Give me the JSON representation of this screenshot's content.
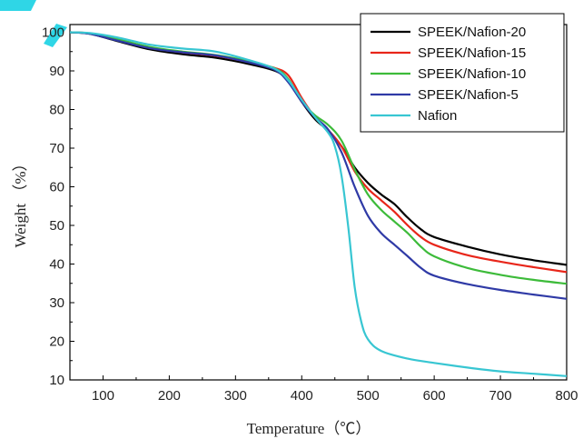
{
  "chart_data": {
    "type": "line",
    "title": "",
    "xlabel": "Temperature（℃）",
    "ylabel": "Weight （%）",
    "xlim": [
      50,
      800
    ],
    "ylim": [
      10,
      102
    ],
    "xticks": [
      100,
      200,
      300,
      400,
      500,
      600,
      700,
      800
    ],
    "xtick_labels": [
      "100",
      "200",
      "300",
      "400",
      "500",
      "600",
      "700",
      "800"
    ],
    "yticks": [
      10,
      20,
      30,
      40,
      50,
      60,
      70,
      80,
      90,
      100
    ],
    "ytick_labels": [
      "10",
      "20",
      "30",
      "40",
      "50",
      "60",
      "70",
      "80",
      "90",
      "100"
    ],
    "grid": false,
    "legend_position": "top-right",
    "series": [
      {
        "name": "SPEEK/Nafion-20",
        "color": "#000000",
        "points": [
          [
            50,
            100
          ],
          [
            80,
            99.6
          ],
          [
            120,
            97.8
          ],
          [
            170,
            95.6
          ],
          [
            220,
            94.3
          ],
          [
            270,
            93.4
          ],
          [
            320,
            91.8
          ],
          [
            360,
            90
          ],
          [
            380,
            87.5
          ],
          [
            400,
            82
          ],
          [
            420,
            77.5
          ],
          [
            440,
            74.5
          ],
          [
            460,
            70.5
          ],
          [
            480,
            65
          ],
          [
            500,
            61
          ],
          [
            520,
            58
          ],
          [
            540,
            55.5
          ],
          [
            560,
            52
          ],
          [
            580,
            49
          ],
          [
            600,
            47
          ],
          [
            650,
            44.5
          ],
          [
            700,
            42.5
          ],
          [
            750,
            41
          ],
          [
            800,
            39.8
          ]
        ]
      },
      {
        "name": "SPEEK/Nafion-15",
        "color": "#e8261a",
        "points": [
          [
            50,
            100
          ],
          [
            80,
            99.7
          ],
          [
            120,
            98.2
          ],
          [
            170,
            96
          ],
          [
            220,
            94.8
          ],
          [
            270,
            93.9
          ],
          [
            320,
            92.3
          ],
          [
            360,
            90.7
          ],
          [
            380,
            88.8
          ],
          [
            400,
            83
          ],
          [
            420,
            78
          ],
          [
            440,
            74.7
          ],
          [
            460,
            70.5
          ],
          [
            480,
            64
          ],
          [
            500,
            59.5
          ],
          [
            520,
            56.5
          ],
          [
            540,
            53.5
          ],
          [
            560,
            50
          ],
          [
            580,
            47
          ],
          [
            600,
            45
          ],
          [
            650,
            42.3
          ],
          [
            700,
            40.6
          ],
          [
            750,
            39.2
          ],
          [
            800,
            37.9
          ]
        ]
      },
      {
        "name": "SPEEK/Nafion-10",
        "color": "#3dbb3a",
        "points": [
          [
            50,
            100
          ],
          [
            80,
            99.7
          ],
          [
            120,
            98.3
          ],
          [
            170,
            96.2
          ],
          [
            220,
            95
          ],
          [
            270,
            94.1
          ],
          [
            320,
            92.5
          ],
          [
            360,
            90.6
          ],
          [
            380,
            87.8
          ],
          [
            400,
            82
          ],
          [
            420,
            78.5
          ],
          [
            440,
            76
          ],
          [
            460,
            72
          ],
          [
            480,
            64.5
          ],
          [
            500,
            58
          ],
          [
            520,
            54
          ],
          [
            540,
            51
          ],
          [
            560,
            48
          ],
          [
            580,
            44.5
          ],
          [
            600,
            42
          ],
          [
            650,
            39
          ],
          [
            700,
            37.2
          ],
          [
            750,
            35.9
          ],
          [
            800,
            34.9
          ]
        ]
      },
      {
        "name": "SPEEK/Nafion-5",
        "color": "#2f3aa6",
        "points": [
          [
            50,
            100
          ],
          [
            80,
            99.6
          ],
          [
            120,
            97.9
          ],
          [
            170,
            95.9
          ],
          [
            220,
            94.8
          ],
          [
            270,
            94
          ],
          [
            320,
            92.2
          ],
          [
            360,
            90.2
          ],
          [
            380,
            87
          ],
          [
            400,
            82
          ],
          [
            420,
            78
          ],
          [
            440,
            74.8
          ],
          [
            460,
            69
          ],
          [
            480,
            60
          ],
          [
            500,
            52.5
          ],
          [
            520,
            48
          ],
          [
            540,
            45
          ],
          [
            560,
            42
          ],
          [
            580,
            39
          ],
          [
            600,
            37
          ],
          [
            650,
            34.8
          ],
          [
            700,
            33.3
          ],
          [
            750,
            32.1
          ],
          [
            800,
            31
          ]
        ]
      },
      {
        "name": "Nafion",
        "color": "#38c6d2",
        "points": [
          [
            50,
            100
          ],
          [
            80,
            99.8
          ],
          [
            120,
            98.7
          ],
          [
            170,
            96.8
          ],
          [
            220,
            95.8
          ],
          [
            270,
            95
          ],
          [
            320,
            92.8
          ],
          [
            360,
            90.5
          ],
          [
            380,
            87.5
          ],
          [
            400,
            82.5
          ],
          [
            420,
            78
          ],
          [
            440,
            74
          ],
          [
            450,
            70.5
          ],
          [
            460,
            63
          ],
          [
            470,
            50
          ],
          [
            480,
            34
          ],
          [
            490,
            25
          ],
          [
            500,
            20.5
          ],
          [
            520,
            17.5
          ],
          [
            560,
            15.5
          ],
          [
            600,
            14.4
          ],
          [
            650,
            13.2
          ],
          [
            700,
            12.2
          ],
          [
            750,
            11.6
          ],
          [
            800,
            11
          ]
        ]
      }
    ]
  }
}
